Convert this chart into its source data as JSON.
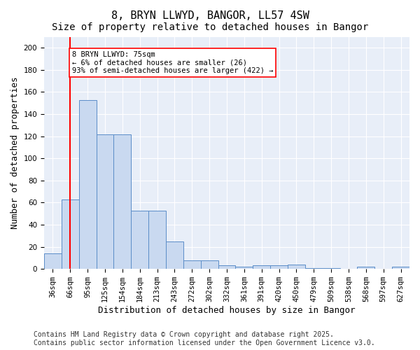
{
  "title1": "8, BRYN LLWYD, BANGOR, LL57 4SW",
  "title2": "Size of property relative to detached houses in Bangor",
  "xlabel": "Distribution of detached houses by size in Bangor",
  "ylabel": "Number of detached properties",
  "bar_values": [
    14,
    63,
    153,
    122,
    122,
    53,
    53,
    25,
    8,
    8,
    3,
    2,
    3,
    3,
    4,
    1,
    1,
    0,
    2,
    0,
    2
  ],
  "bin_labels": [
    "36sqm",
    "66sqm",
    "95sqm",
    "125sqm",
    "154sqm",
    "184sqm",
    "213sqm",
    "243sqm",
    "272sqm",
    "302sqm",
    "332sqm",
    "361sqm",
    "391sqm",
    "420sqm",
    "450sqm",
    "479sqm",
    "509sqm",
    "538sqm",
    "568sqm",
    "597sqm",
    "627sqm"
  ],
  "bar_color": "#c9d9f0",
  "bar_edge_color": "#5b8dc8",
  "vline_x": 1.5,
  "vline_color": "red",
  "annotation_text": "8 BRYN LLWYD: 75sqm\n← 6% of detached houses are smaller (26)\n93% of semi-detached houses are larger (422) →",
  "annotation_box_color": "white",
  "annotation_box_edge": "red",
  "ylim": [
    0,
    210
  ],
  "yticks": [
    0,
    20,
    40,
    60,
    80,
    100,
    120,
    140,
    160,
    180,
    200
  ],
  "background_color": "#e8eef8",
  "grid_color": "white",
  "footer_text": "Contains HM Land Registry data © Crown copyright and database right 2025.\nContains public sector information licensed under the Open Government Licence v3.0.",
  "title_fontsize": 11,
  "subtitle_fontsize": 10,
  "xlabel_fontsize": 9,
  "ylabel_fontsize": 9,
  "tick_fontsize": 7.5,
  "footer_fontsize": 7
}
